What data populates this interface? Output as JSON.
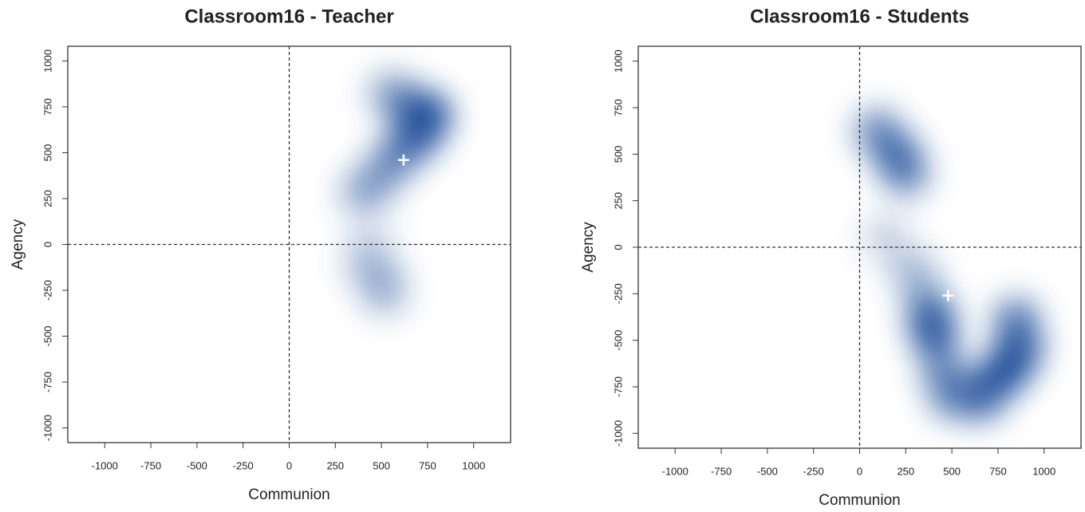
{
  "chart_data": [
    {
      "type": "density",
      "title": "Classroom16 - Teacher",
      "x_label": "Communion",
      "y_label": "Agency",
      "color": "#1f4e99",
      "xlim": [
        -1200,
        1200
      ],
      "ylim": [
        -1080,
        1080
      ],
      "xticks": [
        -1000,
        -750,
        -500,
        -250,
        0,
        250,
        500,
        750,
        1000
      ],
      "yticks": [
        -1000,
        -750,
        -500,
        -250,
        0,
        250,
        500,
        750,
        1000
      ],
      "density": {
        "x": [
          750,
          650,
          700,
          600,
          500,
          400,
          550,
          450,
          400,
          500,
          520
        ],
        "y": [
          700,
          750,
          600,
          500,
          380,
          280,
          820,
          0,
          -100,
          -200,
          -270
        ],
        "weight": [
          1.0,
          0.6,
          0.8,
          0.6,
          0.45,
          0.4,
          0.4,
          0.2,
          0.2,
          0.3,
          0.25
        ]
      },
      "mean": {
        "x": 620,
        "y": 460
      }
    },
    {
      "type": "density",
      "title": "Classroom16 - Students",
      "x_label": "Communion",
      "y_label": "Agency",
      "color": "#1f4e99",
      "xlim": [
        -1200,
        1200
      ],
      "ylim": [
        -1080,
        1080
      ],
      "xticks": [
        -1000,
        -750,
        -500,
        -250,
        0,
        250,
        500,
        750,
        1000
      ],
      "yticks": [
        -1000,
        -750,
        -500,
        -250,
        0,
        250,
        500,
        750,
        1000
      ],
      "density": {
        "x": [
          100,
          200,
          250,
          150,
          300,
          400,
          380,
          500,
          650,
          800,
          850,
          870,
          700,
          450
        ],
        "y": [
          620,
          500,
          400,
          50,
          -150,
          -450,
          -350,
          -800,
          -820,
          -650,
          -400,
          -550,
          -750,
          -650
        ],
        "weight": [
          0.6,
          0.7,
          0.6,
          0.25,
          0.4,
          0.9,
          0.7,
          0.6,
          0.6,
          1.0,
          0.7,
          0.8,
          0.7,
          0.6
        ]
      },
      "mean": {
        "x": 480,
        "y": -260
      }
    }
  ]
}
